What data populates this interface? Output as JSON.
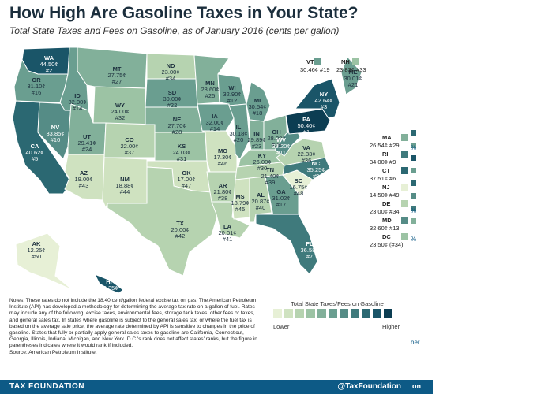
{
  "title": "How High Are Gasoline Taxes in Your State?",
  "subtitle": "Total State Taxes and Fees on Gasoline, as of January 2016 (cents per gallon)",
  "colors": {
    "scale": [
      "#e7f0d6",
      "#cfe2c0",
      "#b6d3b0",
      "#9cc3a4",
      "#82b09a",
      "#6a9e90",
      "#558c86",
      "#3f7a7c",
      "#2b6872",
      "#1a5568",
      "#0c3d52"
    ],
    "footer": "#0d5a86"
  },
  "states": [
    {
      "id": "WA",
      "value": "44.50¢",
      "rank": "#2",
      "level": 9
    },
    {
      "id": "OR",
      "value": "31.10¢",
      "rank": "#16",
      "level": 5
    },
    {
      "id": "CA",
      "value": "40.62¢",
      "rank": "#5",
      "level": 8
    },
    {
      "id": "NV",
      "value": "33.85¢",
      "rank": "#10",
      "level": 6
    },
    {
      "id": "ID",
      "value": "32.00¢",
      "rank": "#14",
      "level": 5
    },
    {
      "id": "MT",
      "value": "27.75¢",
      "rank": "#27",
      "level": 4
    },
    {
      "id": "WY",
      "value": "24.00¢",
      "rank": "#32",
      "level": 3
    },
    {
      "id": "UT",
      "value": "29.41¢",
      "rank": "#24",
      "level": 4
    },
    {
      "id": "AZ",
      "value": "19.00¢",
      "rank": "#43",
      "level": 1
    },
    {
      "id": "CO",
      "value": "22.00¢",
      "rank": "#37",
      "level": 2
    },
    {
      "id": "NM",
      "value": "18.88¢",
      "rank": "#44",
      "level": 1
    },
    {
      "id": "ND",
      "value": "23.00¢",
      "rank": "#34",
      "level": 2
    },
    {
      "id": "SD",
      "value": "30.00¢",
      "rank": "#22",
      "level": 5
    },
    {
      "id": "NE",
      "value": "27.70¢",
      "rank": "#28",
      "level": 4
    },
    {
      "id": "KS",
      "value": "24.03¢",
      "rank": "#31",
      "level": 3
    },
    {
      "id": "OK",
      "value": "17.00¢",
      "rank": "#47",
      "level": 1
    },
    {
      "id": "TX",
      "value": "20.00¢",
      "rank": "#42",
      "level": 2
    },
    {
      "id": "MN",
      "value": "28.60¢",
      "rank": "#25",
      "level": 4
    },
    {
      "id": "IA",
      "value": "32.00¢",
      "rank": "#14",
      "level": 5
    },
    {
      "id": "MO",
      "value": "17.30¢",
      "rank": "#46",
      "level": 1
    },
    {
      "id": "AR",
      "value": "21.80¢",
      "rank": "#38",
      "level": 2
    },
    {
      "id": "LA",
      "value": "20.01¢",
      "rank": "#41",
      "level": 2
    },
    {
      "id": "WI",
      "value": "32.90¢",
      "rank": "#12",
      "level": 5
    },
    {
      "id": "IL",
      "value": "30.18¢",
      "rank": "#20",
      "level": 5
    },
    {
      "id": "MI",
      "value": "30.54¢",
      "rank": "#18",
      "level": 5
    },
    {
      "id": "IN",
      "value": "29.89¢",
      "rank": "#23",
      "level": 4
    },
    {
      "id": "OH",
      "value": "28.00¢",
      "rank": "#26",
      "level": 4
    },
    {
      "id": "KY",
      "value": "26.00¢",
      "rank": "#30",
      "level": 3
    },
    {
      "id": "TN",
      "value": "21.40¢",
      "rank": "#39",
      "level": 2
    },
    {
      "id": "MS",
      "value": "18.79¢",
      "rank": "#45",
      "level": 1
    },
    {
      "id": "AL",
      "value": "20.87¢",
      "rank": "#40",
      "level": 2
    },
    {
      "id": "GA",
      "value": "31.02¢",
      "rank": "#17",
      "level": 5
    },
    {
      "id": "FL",
      "value": "36.58¢",
      "rank": "#7",
      "level": 7
    },
    {
      "id": "SC",
      "value": "16.75¢",
      "rank": "#48",
      "level": 0
    },
    {
      "id": "NC",
      "value": "35.25¢",
      "rank": "#8",
      "level": 7
    },
    {
      "id": "VA",
      "value": "22.33¢",
      "rank": "#36",
      "level": 2
    },
    {
      "id": "WV",
      "value": "33.20¢",
      "rank": "#11",
      "level": 6
    },
    {
      "id": "PA",
      "value": "50.40¢",
      "rank": "#1",
      "level": 10
    },
    {
      "id": "NY",
      "value": "42.64¢",
      "rank": "#3",
      "level": 9
    },
    {
      "id": "ME",
      "value": "30.01¢",
      "rank": "#21",
      "level": 5
    },
    {
      "id": "AK",
      "value": "12.25¢",
      "rank": "#50",
      "level": 0
    },
    {
      "id": "HI",
      "value": "42.35¢",
      "rank": "#4",
      "level": 9
    }
  ],
  "ne_callouts": [
    {
      "id": "VT",
      "value": "30.46¢ #19",
      "level": 5
    },
    {
      "id": "NH",
      "value": "23.83¢ #33",
      "level": 3
    }
  ],
  "east_list": [
    {
      "id": "MA",
      "value": "26.54¢ #29",
      "level": 4
    },
    {
      "id": "RI",
      "value": "34.00¢ #9",
      "level": 7
    },
    {
      "id": "CT",
      "value": "37.51¢ #6",
      "level": 8
    },
    {
      "id": "NJ",
      "value": "14.50¢ #49",
      "level": 0
    },
    {
      "id": "DE",
      "value": "23.00¢ #34",
      "level": 2
    },
    {
      "id": "MD",
      "value": "32.60¢ #13",
      "level": 6
    },
    {
      "id": "DC",
      "value": "23.50¢ (#34)",
      "level": 3
    }
  ],
  "legend": {
    "title": "Total State Taxes/Fees on Gasoline",
    "lower": "Lower",
    "higher": "Higher"
  },
  "notes": "Notes: These rates do not include the 18.40 cent/gallon federal excise tax on gas. The American Petroleum Institute (API) has developed a methodology for determining the average tax rate on a gallon of fuel. Rates may include any of the following: excise taxes, environmental fees, storage tank taxes, other fees or taxes, and general sales tax. In states where gasoline is subject to the general sales tax, or where the fuel tax is based on the average sale price, the average rate determined by API is sensitive to changes in the price of gasoline. States that fully or partially apply general sales taxes to gasoline are California, Connecticut, Georgia, Illinois, Indiana, Michigan, and New York. D.C.'s rank does not affect states' ranks, but the figure in parentheses indicates where it would rank if included.",
  "source": "Source: American Petroleum Institute.",
  "footer": {
    "left": "TAX FOUNDATION",
    "right": "@TaxFoundation",
    "tab": "on"
  },
  "right_edge": {
    "glyphs": [
      "%",
      "%",
      "%",
      "her"
    ]
  }
}
